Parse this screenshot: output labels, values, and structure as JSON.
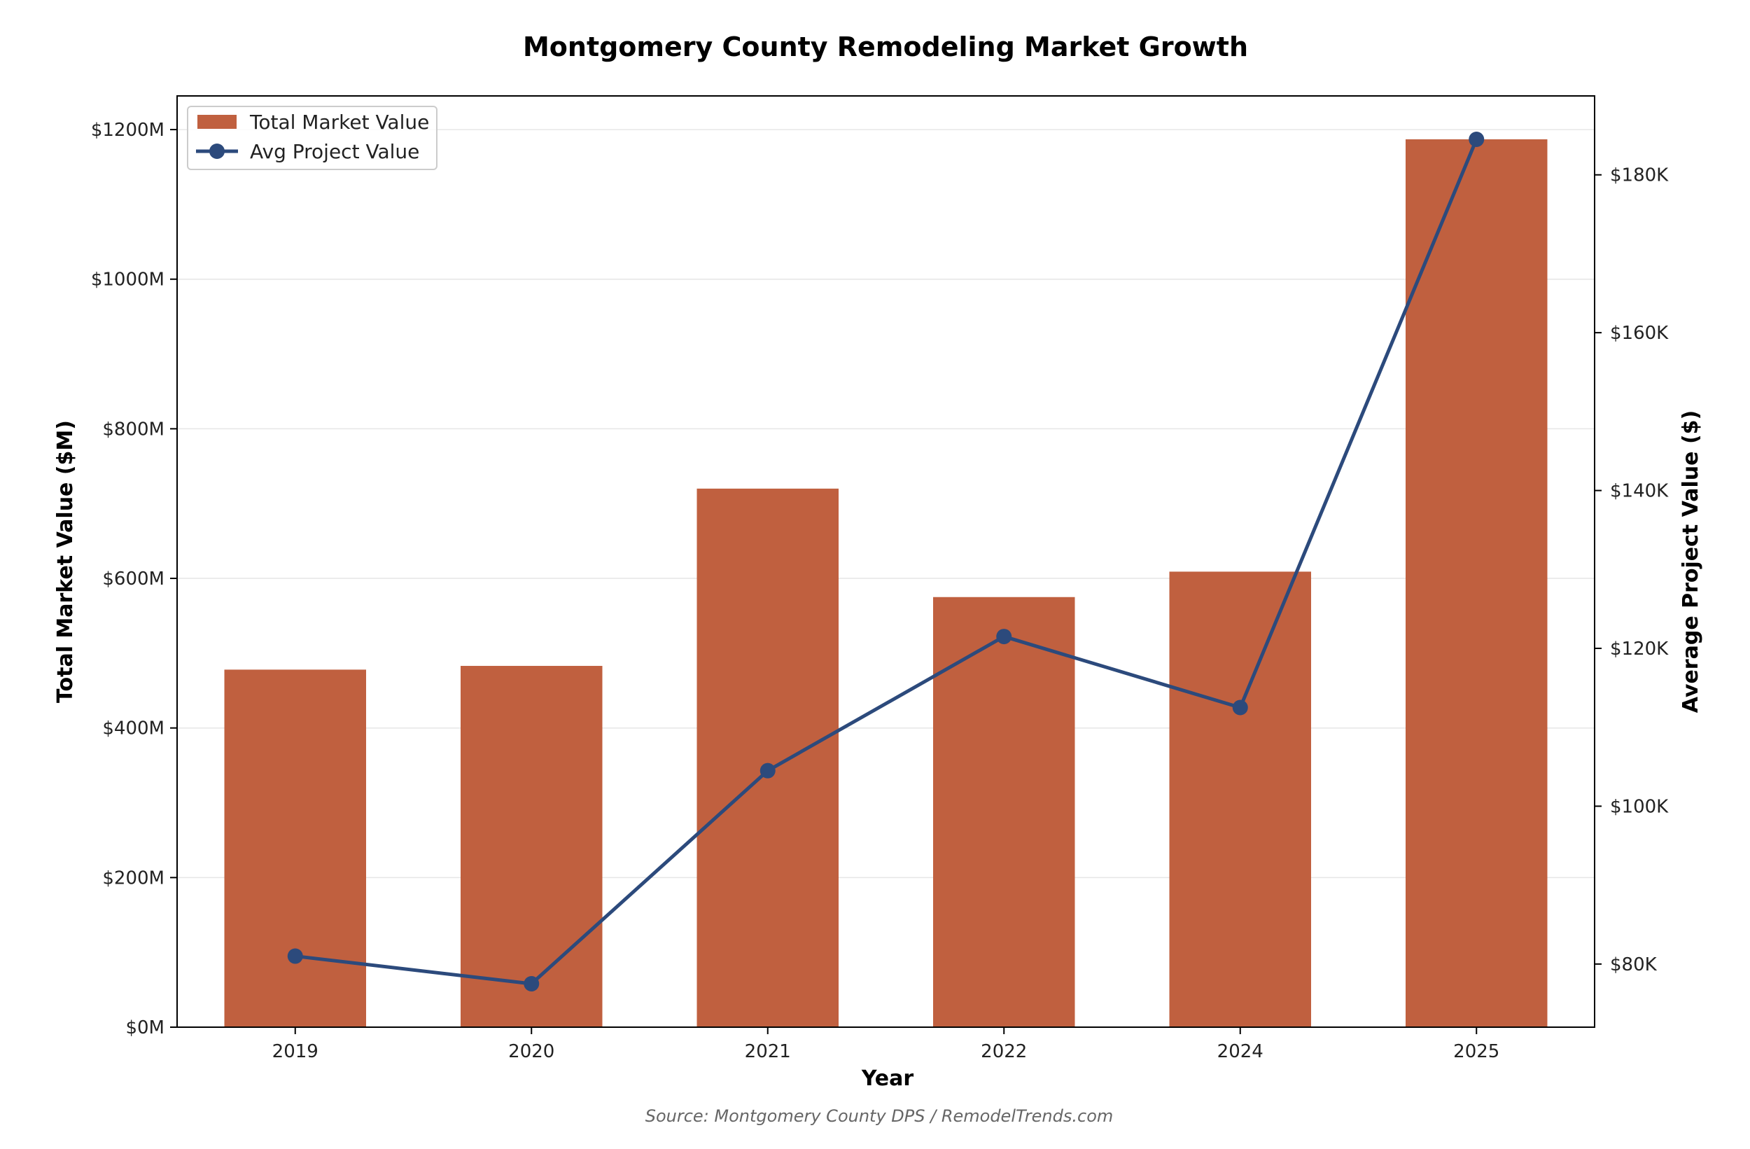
{
  "chart_data": {
    "type": "bar",
    "title": "Montgomery County Remodeling Market Growth",
    "xlabel": "Year",
    "ylabel": "Total Market Value ($M)",
    "y2label": "Average Project Value ($)",
    "source": "Source: Montgomery County DPS / RemodelTrends.com",
    "categories": [
      "2019",
      "2020",
      "2021",
      "2022",
      "2024",
      "2025"
    ],
    "ylim": [
      0,
      1245
    ],
    "y2lim": [
      72000,
      190000
    ],
    "yticks": [
      0,
      200,
      400,
      600,
      800,
      1000,
      1200
    ],
    "yticklabels": [
      "$0M",
      "$200M",
      "$400M",
      "$600M",
      "$800M",
      "$1000M",
      "$1200M"
    ],
    "y2ticks": [
      80000,
      100000,
      120000,
      140000,
      160000,
      180000
    ],
    "y2ticklabels": [
      "$80K",
      "$100K",
      "$120K",
      "$140K",
      "$160K",
      "$180K"
    ],
    "grid": true,
    "legend_position": "top-left",
    "series": [
      {
        "name": "Total Market Value",
        "type": "bar",
        "axis": "left",
        "color": "#c0603f",
        "values": [
          478,
          483,
          720,
          575,
          609,
          1187
        ]
      },
      {
        "name": "Avg Project Value",
        "type": "line",
        "axis": "right",
        "color": "#2c4a7c",
        "values": [
          81000,
          77500,
          104500,
          121500,
          112500,
          184500
        ]
      }
    ]
  }
}
